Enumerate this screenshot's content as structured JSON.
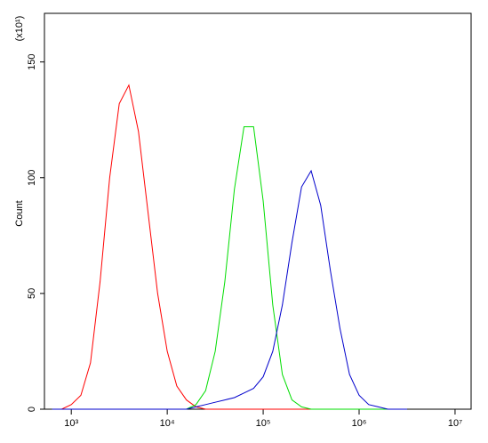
{
  "chart_data": {
    "type": "line",
    "y_label": "Count",
    "annotation": "(x10¹)",
    "x": [
      631,
      794,
      1000,
      1259,
      1585,
      1995,
      2512,
      3162,
      3981,
      5012,
      6310,
      7943,
      10000,
      12589,
      15849,
      19953,
      25119,
      31623,
      39811,
      50119,
      63096,
      79433,
      100000,
      125893,
      158489,
      199526,
      251189,
      316228,
      398107,
      501187,
      630957,
      794328,
      1000000,
      1258925,
      1584893,
      1995262,
      2511886,
      3162278
    ],
    "series": [
      {
        "color": "#ff0000",
        "values": [
          0,
          0,
          2,
          6,
          20,
          55,
          100,
          132,
          140,
          120,
          85,
          50,
          25,
          10,
          4,
          1,
          0,
          0,
          0,
          0,
          0,
          0,
          0,
          0,
          0,
          0,
          0,
          0,
          0,
          0,
          0,
          0,
          0,
          0,
          0,
          0,
          0,
          0
        ]
      },
      {
        "color": "#00dd00",
        "values": [
          0,
          0,
          0,
          0,
          0,
          0,
          0,
          0,
          0,
          0,
          0,
          0,
          0,
          0,
          0,
          2,
          8,
          25,
          55,
          95,
          122,
          122,
          90,
          45,
          15,
          4,
          1,
          0,
          0,
          0,
          0,
          0,
          0,
          0,
          0,
          0,
          0,
          0
        ]
      },
      {
        "color": "#0000cc",
        "values": [
          0,
          0,
          0,
          0,
          0,
          0,
          0,
          0,
          0,
          0,
          0,
          0,
          0,
          0,
          0,
          1,
          2,
          3,
          4,
          5,
          7,
          9,
          14,
          25,
          45,
          72,
          96,
          103,
          88,
          60,
          35,
          15,
          6,
          2,
          1,
          0,
          0,
          0
        ]
      }
    ],
    "xscale": "log",
    "xlim": [
      525,
      14700000
    ],
    "xticks": [
      {
        "value": 1000,
        "label": "10³"
      },
      {
        "value": 10000,
        "label": "10⁴"
      },
      {
        "value": 100000,
        "label": "10⁵"
      },
      {
        "value": 1000000,
        "label": "10⁶"
      },
      {
        "value": 10000000,
        "label": "10⁷"
      }
    ],
    "ylim": [
      0,
      171
    ],
    "yticks": [
      0,
      50,
      100,
      150
    ]
  }
}
